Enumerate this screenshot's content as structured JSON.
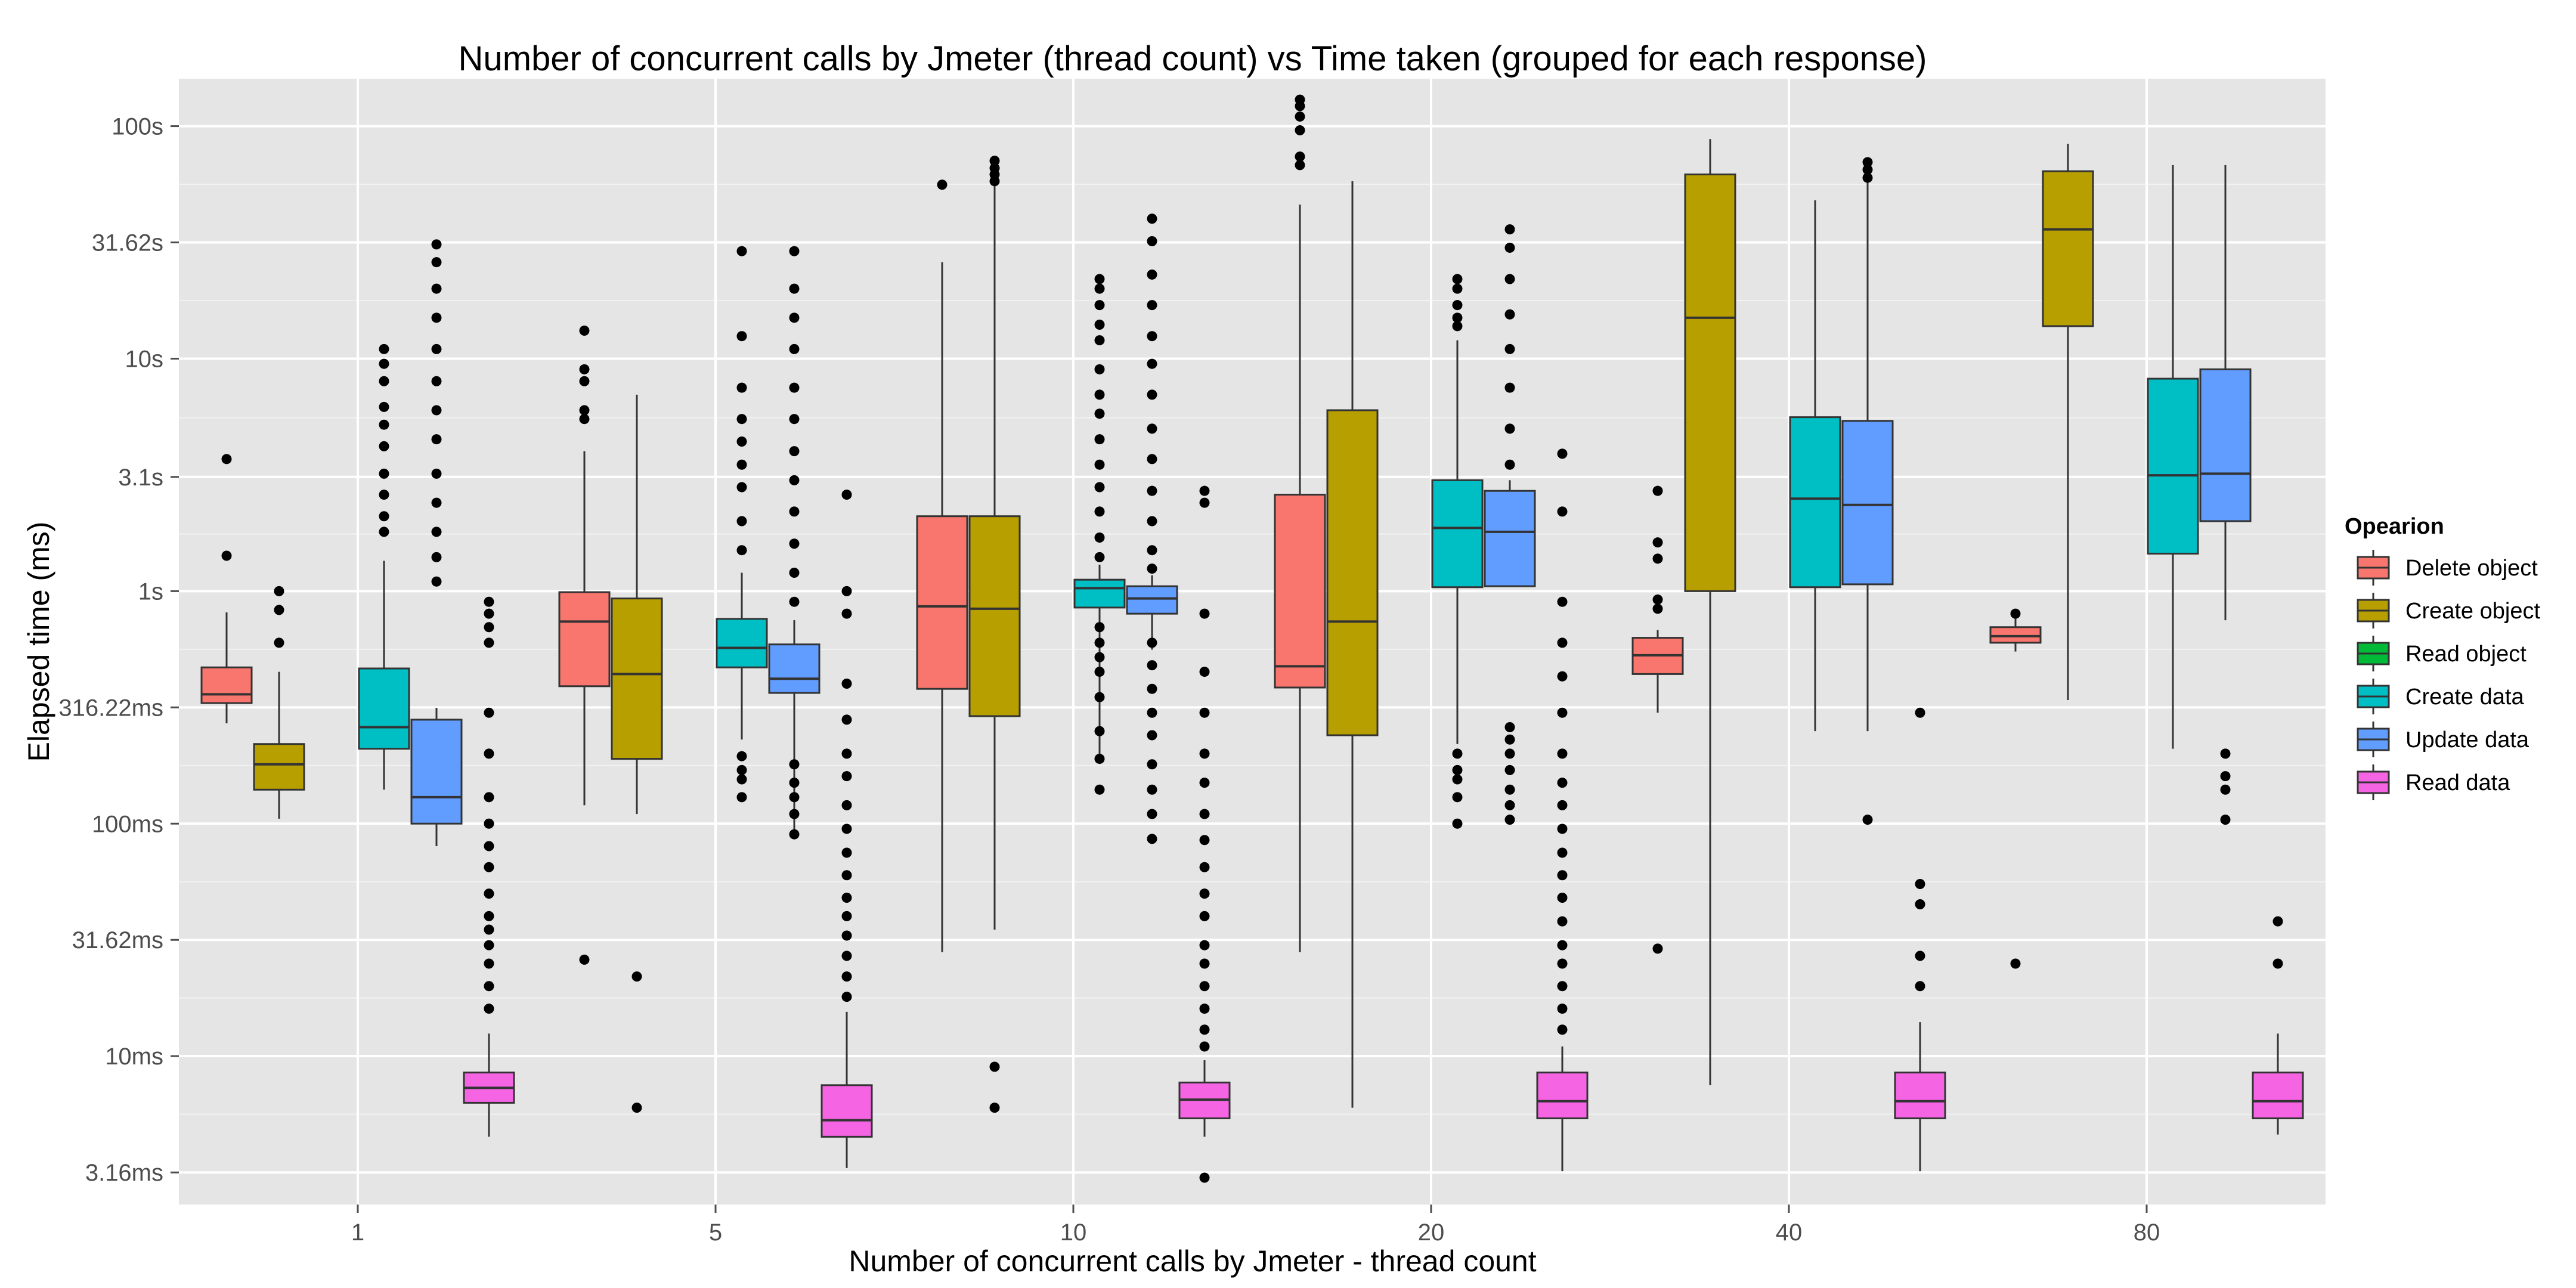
{
  "chart_data": {
    "type": "boxplot",
    "title": "Number of concurrent calls by Jmeter (thread count) vs Time taken (grouped for each response)",
    "xlabel": "Number of concurrent calls by Jmeter - thread count",
    "ylabel": "Elapsed time (ms)",
    "y_scale": "log10",
    "y_unit": "ms",
    "ylim": [
      2.3,
      160000
    ],
    "grid": true,
    "legend_position": "right",
    "categories": [
      "1",
      "5",
      "10",
      "20",
      "40",
      "80"
    ],
    "y_ticks": [
      {
        "value": 3.16,
        "label": "3.16ms"
      },
      {
        "value": 10,
        "label": "10ms"
      },
      {
        "value": 31.62,
        "label": "31.62ms"
      },
      {
        "value": 100,
        "label": "100ms"
      },
      {
        "value": 316.22,
        "label": "316.22ms"
      },
      {
        "value": 1000,
        "label": "1s"
      },
      {
        "value": 3100,
        "label": "3.1s"
      },
      {
        "value": 10000,
        "label": "10s"
      },
      {
        "value": 31620,
        "label": "31.62s"
      },
      {
        "value": 100000,
        "label": "100s"
      }
    ],
    "legend": {
      "title": "Opearion",
      "items": [
        {
          "name": "Delete object",
          "color": "#F8766D"
        },
        {
          "name": "Create object",
          "color": "#B79F00"
        },
        {
          "name": "Read object",
          "color": "#00BA38"
        },
        {
          "name": "Create data",
          "color": "#00BFC4"
        },
        {
          "name": "Update data",
          "color": "#619CFF"
        },
        {
          "name": "Read data",
          "color": "#F564E3"
        }
      ]
    },
    "series": [
      {
        "name": "Delete object",
        "color": "#F8766D",
        "boxes": [
          {
            "category": "1",
            "min": 270,
            "q1": 330,
            "median": 360,
            "q3": 470,
            "max": 810,
            "outliers": [
              1420,
              3700
            ]
          },
          {
            "category": "5",
            "min": 120,
            "q1": 390,
            "median": 740,
            "q3": 990,
            "max": 4000,
            "outliers": [
              26,
              5500,
              6000,
              8000,
              9000,
              13200
            ]
          },
          {
            "category": "10",
            "min": 28,
            "q1": 380,
            "median": 860,
            "q3": 2100,
            "max": 26000,
            "outliers": [
              56000
            ]
          },
          {
            "category": "20",
            "min": 28,
            "q1": 385,
            "median": 475,
            "q3": 2600,
            "max": 46000,
            "outliers": [
              68000,
              74000,
              96000,
              110000,
              122000,
              130000
            ]
          },
          {
            "category": "40",
            "min": 300,
            "q1": 440,
            "median": 530,
            "q3": 630,
            "max": 680,
            "outliers": [
              29,
              840,
              920,
              1380,
              1620,
              2700
            ]
          },
          {
            "category": "80",
            "min": 550,
            "q1": 600,
            "median": 640,
            "q3": 700,
            "max": 800,
            "outliers": [
              25,
              800
            ]
          }
        ]
      },
      {
        "category_offset": 1,
        "name": "Create object",
        "color": "#B79F00",
        "boxes": [
          {
            "category": "1",
            "min": 105,
            "q1": 140,
            "median": 180,
            "q3": 220,
            "max": 450,
            "outliers": [
              600,
              830,
              1000
            ]
          },
          {
            "category": "5",
            "min": 110,
            "q1": 190,
            "median": 440,
            "q3": 930,
            "max": 7000,
            "outliers": [
              6,
              22
            ]
          },
          {
            "category": "10",
            "min": 35,
            "q1": 290,
            "median": 840,
            "q3": 2100,
            "max": 74000,
            "outliers": [
              6,
              9,
              58000,
              62000,
              66000,
              71000
            ]
          },
          {
            "category": "20",
            "min": 6,
            "q1": 240,
            "median": 740,
            "q3": 6000,
            "max": 58000
          },
          {
            "category": "40",
            "min": 7.5,
            "q1": 1000,
            "median": 15000,
            "q3": 62000,
            "max": 88000
          },
          {
            "category": "80",
            "min": 340,
            "q1": 13800,
            "median": 36000,
            "q3": 64000,
            "max": 84000
          }
        ]
      },
      {
        "name": "Read object",
        "color": "#00BA38",
        "boxes": []
      },
      {
        "name": "Create data",
        "color": "#00BFC4",
        "boxes": [
          {
            "category": "1",
            "min": 140,
            "q1": 210,
            "median": 260,
            "q3": 465,
            "max": 1350,
            "outliers": [
              1800,
              2100,
              2600,
              3200,
              4200,
              5200,
              6200,
              8000,
              9500,
              11000
            ]
          },
          {
            "category": "5",
            "min": 230,
            "q1": 470,
            "median": 570,
            "q3": 760,
            "max": 1200,
            "outliers": [
              130,
              155,
              170,
              195,
              1500,
              2000,
              2800,
              3500,
              4400,
              5500,
              7500,
              12500,
              29000
            ]
          },
          {
            "category": "10",
            "min": 195,
            "q1": 850,
            "median": 1030,
            "q3": 1120,
            "max": 1300,
            "outliers": [
              140,
              190,
              250,
              350,
              450,
              520,
              600,
              700,
              1400,
              1700,
              2200,
              2800,
              3500,
              4500,
              5800,
              7000,
              9000,
              12000,
              14000,
              17000,
              20000,
              22000
            ]
          },
          {
            "category": "20",
            "min": 220,
            "q1": 1040,
            "median": 1870,
            "q3": 3000,
            "max": 12000,
            "outliers": [
              100,
              130,
              155,
              170,
              200,
              13800,
              15000,
              17000,
              20000,
              22000
            ]
          },
          {
            "category": "40",
            "min": 250,
            "q1": 1040,
            "median": 2500,
            "q3": 5600,
            "max": 48000
          },
          {
            "category": "80",
            "min": 210,
            "q1": 1450,
            "median": 3150,
            "q3": 8200,
            "max": 68000
          }
        ]
      },
      {
        "name": "Update data",
        "color": "#619CFF",
        "boxes": [
          {
            "category": "1",
            "min": 80,
            "q1": 100,
            "median": 130,
            "q3": 280,
            "max": 315,
            "outliers": [
              1100,
              1400,
              1800,
              2400,
              3200,
              4500,
              6000,
              8000,
              11000,
              15000,
              20000,
              26000,
              31000
            ]
          },
          {
            "category": "5",
            "min": 90,
            "q1": 365,
            "median": 420,
            "q3": 590,
            "max": 750,
            "outliers": [
              90,
              110,
              130,
              150,
              180,
              900,
              1200,
              1600,
              2200,
              3000,
              4000,
              5500,
              7500,
              11000,
              15000,
              20000,
              29000
            ]
          },
          {
            "category": "10",
            "min": 560,
            "q1": 800,
            "median": 930,
            "q3": 1050,
            "max": 1170,
            "outliers": [
              86,
              110,
              140,
              180,
              240,
              300,
              380,
              480,
              600,
              1250,
              1500,
              2000,
              2700,
              3700,
              5000,
              7000,
              9500,
              12500,
              17000,
              23000,
              32000,
              40000
            ]
          },
          {
            "category": "20",
            "min": 1050,
            "q1": 1050,
            "median": 1800,
            "q3": 2700,
            "max": 3000,
            "outliers": [
              104,
              120,
              140,
              170,
              200,
              230,
              260,
              3500,
              5000,
              7500,
              11000,
              15500,
              22000,
              30000,
              36000
            ]
          },
          {
            "category": "40",
            "min": 250,
            "q1": 1070,
            "median": 2350,
            "q3": 5400,
            "max": 60000,
            "outliers": [
              104,
              60000,
              65000,
              70000
            ]
          },
          {
            "category": "80",
            "min": 750,
            "q1": 2000,
            "median": 3200,
            "q3": 9000,
            "max": 68000,
            "outliers": [
              104,
              140,
              160,
              200
            ]
          }
        ]
      },
      {
        "name": "Read data",
        "color": "#F564E3",
        "boxes": [
          {
            "category": "1",
            "min": 4.5,
            "q1": 6.3,
            "median": 7.3,
            "q3": 8.5,
            "max": 12.5,
            "outliers": [
              16,
              20,
              25,
              30,
              35,
              40,
              50,
              65,
              80,
              100,
              130,
              200,
              300,
              600,
              700,
              800,
              900
            ]
          },
          {
            "category": "5",
            "min": 3.3,
            "q1": 4.5,
            "median": 5.3,
            "q3": 7.5,
            "max": 15.5,
            "outliers": [
              18,
              22,
              27,
              33,
              40,
              48,
              60,
              75,
              95,
              120,
              160,
              200,
              280,
              400,
              800,
              1000,
              2600
            ]
          },
          {
            "category": "10",
            "min": 4.5,
            "q1": 5.4,
            "median": 6.5,
            "q3": 7.7,
            "max": 9.6,
            "outliers": [
              3.0,
              11,
              13,
              16,
              20,
              25,
              30,
              40,
              50,
              65,
              85,
              110,
              150,
              200,
              300,
              450,
              800,
              2400,
              2700
            ]
          },
          {
            "category": "20",
            "min": 3.2,
            "q1": 5.4,
            "median": 6.4,
            "q3": 8.5,
            "max": 11,
            "outliers": [
              13,
              16,
              20,
              25,
              30,
              38,
              48,
              60,
              75,
              95,
              120,
              150,
              200,
              300,
              430,
              600,
              900,
              2200,
              3900
            ]
          },
          {
            "category": "40",
            "min": 3.2,
            "q1": 5.4,
            "median": 6.4,
            "q3": 8.5,
            "max": 14,
            "outliers": [
              20,
              27,
              45,
              55,
              300
            ]
          },
          {
            "category": "80",
            "min": 4.6,
            "q1": 5.4,
            "median": 6.4,
            "q3": 8.5,
            "max": 12.5,
            "outliers": [
              25,
              38
            ]
          }
        ]
      }
    ]
  }
}
